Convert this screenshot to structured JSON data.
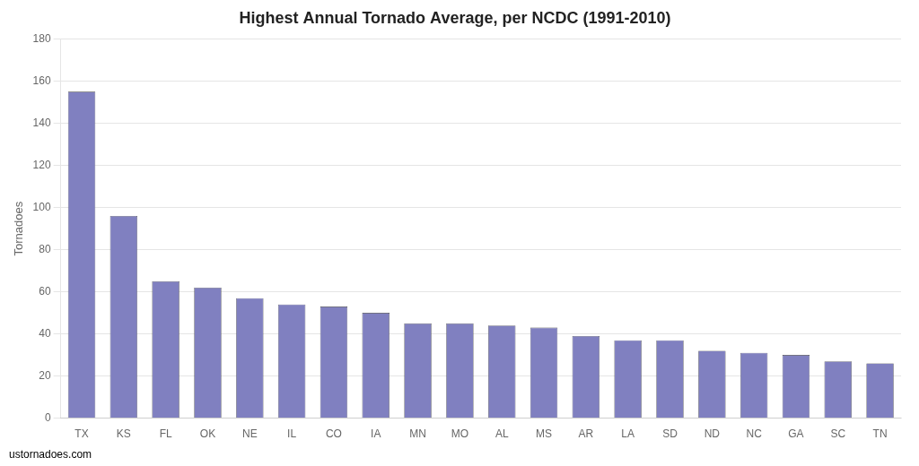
{
  "chart_data": {
    "type": "bar",
    "title": "Highest Annual Tornado Average, per NCDC (1991-2010)",
    "ylabel": "Tornadoes",
    "annotations": [
      "ustornadoes.com"
    ],
    "categories": [
      "TX",
      "KS",
      "FL",
      "OK",
      "NE",
      "IL",
      "CO",
      "IA",
      "MN",
      "MO",
      "AL",
      "MS",
      "AR",
      "LA",
      "SD",
      "ND",
      "NC",
      "GA",
      "SC",
      "TN"
    ],
    "values": [
      155,
      96,
      65,
      62,
      57,
      54,
      53,
      50,
      45,
      45,
      44,
      43,
      39,
      37,
      37,
      32,
      31,
      30,
      27,
      26
    ],
    "color": "#8080c0",
    "ylim": [
      0,
      180
    ],
    "yticks": [
      0,
      20,
      40,
      60,
      80,
      100,
      120,
      140,
      160,
      180
    ],
    "grid": true
  }
}
